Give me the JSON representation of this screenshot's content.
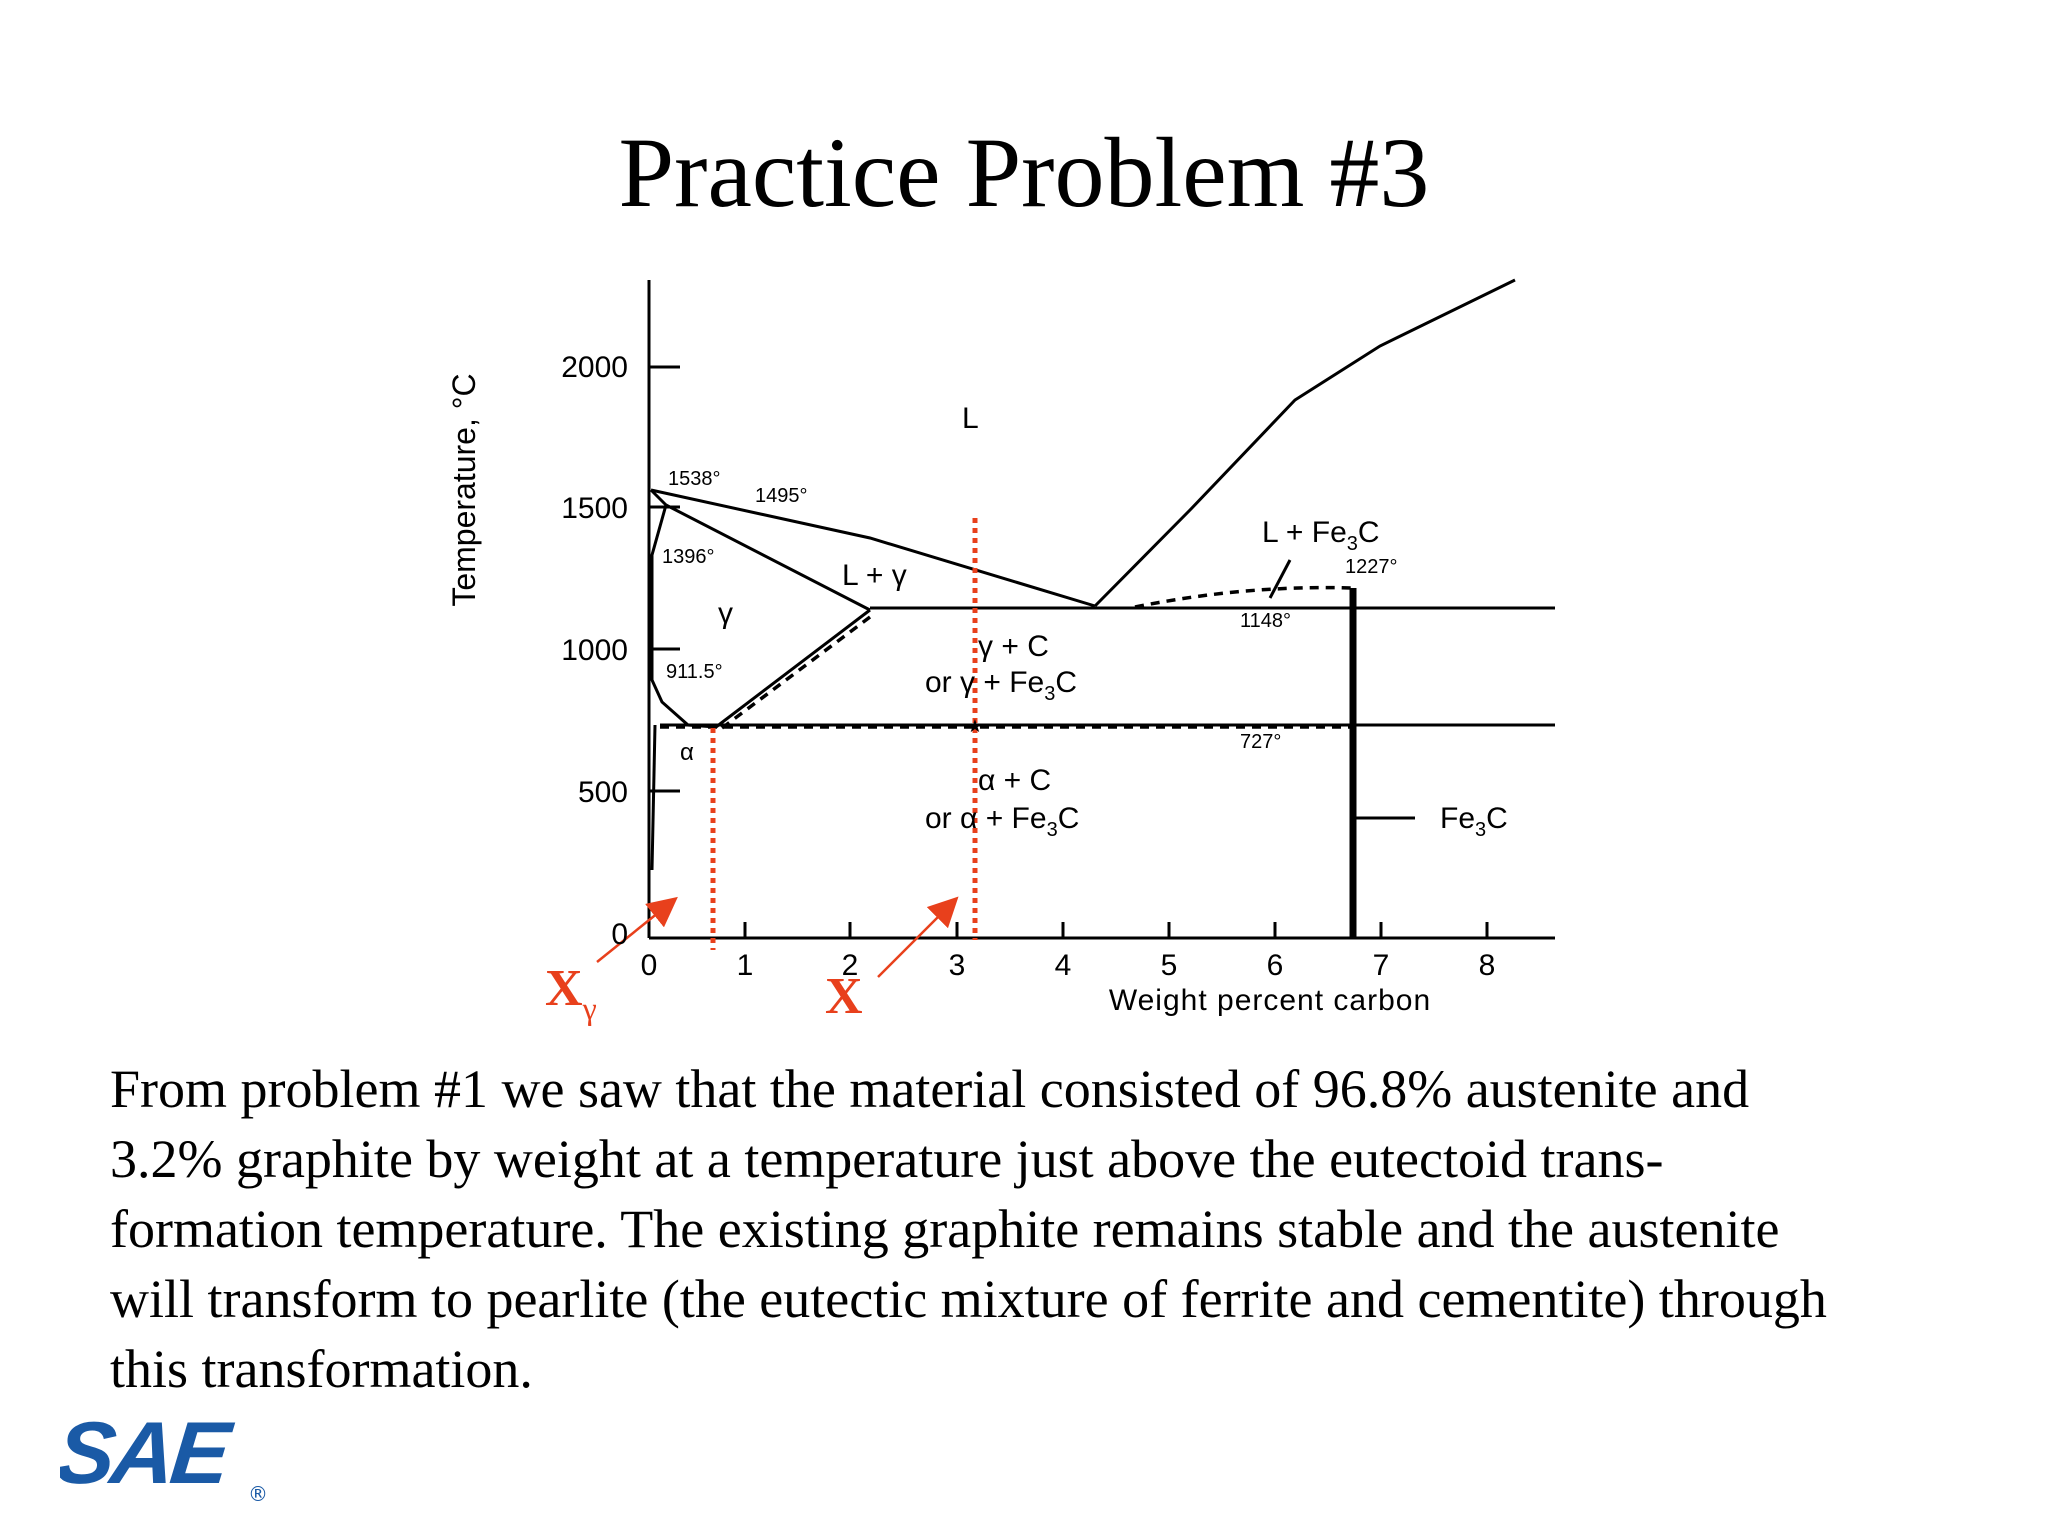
{
  "title": "Practice Problem #3",
  "diagram": {
    "ylabel": "Temperature, °C",
    "xlabel": "Weight percent carbon",
    "y_ticks": [
      "2000",
      "1500",
      "1000",
      "500",
      "0"
    ],
    "x_ticks": [
      "0",
      "1",
      "2",
      "3",
      "4",
      "5",
      "6",
      "7",
      "8"
    ],
    "temperatures": {
      "t1538": "1538°",
      "t1495": "1495°",
      "t1396": "1396°",
      "t911": "911.5°",
      "t1227": "1227°",
      "t1148": "1148°",
      "t727": "727°"
    },
    "regions": {
      "liquid": "L",
      "liquid_gamma": "L + γ",
      "gamma": "γ",
      "alpha": "α",
      "l_fe3c": "L + Fe",
      "gamma_c_1": "γ + C",
      "gamma_c_2_prefix": "or γ + Fe",
      "alpha_c_1": "α + C",
      "alpha_c_2_prefix": "or α + Fe",
      "fe3c": "Fe"
    },
    "subscript_3": "3",
    "c_letter": "C",
    "markers": {
      "x_gamma": "X",
      "x_gamma_sub": "γ",
      "x": "X"
    },
    "colors": {
      "marker": "#e8401c",
      "line": "#000000"
    }
  },
  "body_lines": [
    "From problem #1 we saw that the material consisted of 96.8% austenite and",
    "3.2% graphite by weight at a temperature just above the eutectoid trans-",
    "formation temperature. The existing graphite remains stable and the austenite",
    "will transform to pearlite (the eutectic mixture of ferrite and cementite) through",
    "this transformation."
  ],
  "logo": {
    "text": "SAE",
    "registered": "®",
    "color": "#1a5aa6"
  }
}
